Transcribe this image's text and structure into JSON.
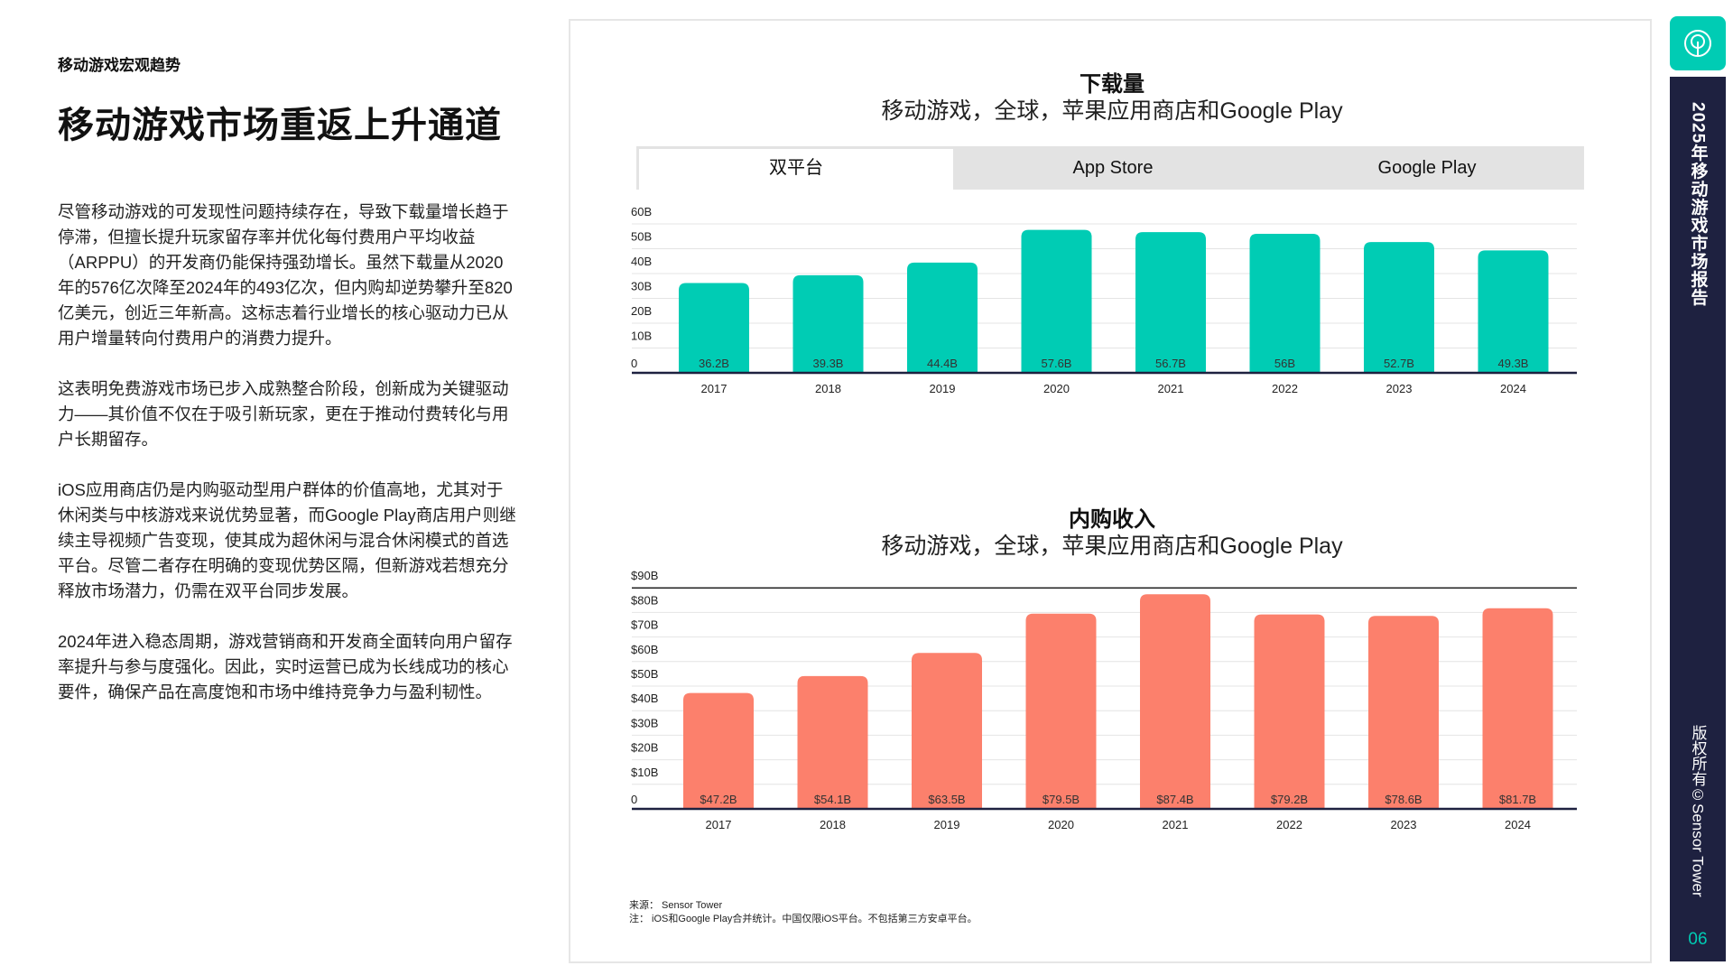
{
  "left": {
    "kicker": "移动游戏宏观趋势",
    "title": "移动游戏市场重返上升通道",
    "paragraphs": [
      "尽管移动游戏的可发现性问题持续存在，导致下载量增长趋于停滞，但擅长提升玩家留存率并优化每付费用户平均收益（ARPPU）的开发商仍能保持强劲增长。虽然下载量从2020年的576亿次降至2024年的493亿次，但内购却逆势攀升至820亿美元，创近三年新高。这标志着行业增长的核心驱动力已从用户增量转向付费用户的消费力提升。",
      "这表明免费游戏市场已步入成熟整合阶段，创新成为关键驱动力——其价值不仅在于吸引新玩家，更在于推动付费转化与用户长期留存。",
      "iOS应用商店仍是内购驱动型用户群体的价值高地，尤其对于休闲类与中核游戏来说优势显著，而Google Play商店用户则继续主导视频广告变现，使其成为超休闲与混合休闲模式的首选平台。尽管二者存在明确的变现优势区隔，但新游戏若想充分释放市场潜力，仍需在双平台同步发展。",
      "2024年进入稳态周期，游戏营销商和开发商全面转向用户留存率提升与参与度强化。因此，实时运营已成为长线成功的核心要件，确保产品在高度饱和市场中维持竞争力与盈利韧性。"
    ]
  },
  "tabs": [
    "双平台",
    "App Store",
    "Google Play"
  ],
  "active_tab": 0,
  "chart_data": [
    {
      "type": "bar",
      "title": "下载量",
      "subtitle": "移动游戏，全球，苹果应用商店和Google Play",
      "categories": [
        "2017",
        "2018",
        "2019",
        "2020",
        "2021",
        "2022",
        "2023",
        "2024"
      ],
      "values": [
        36.2,
        39.3,
        44.4,
        57.6,
        56.7,
        56,
        52.7,
        49.3
      ],
      "data_labels": [
        "36.2B",
        "39.3B",
        "44.4B",
        "57.6B",
        "56.7B",
        "56B",
        "52.7B",
        "49.3B"
      ],
      "yticks": [
        "0",
        "10B",
        "20B",
        "30B",
        "40B",
        "50B",
        "60B"
      ],
      "ylim": [
        0,
        60
      ],
      "grid": true,
      "color": "#00ccb4"
    },
    {
      "type": "bar",
      "title": "内购收入",
      "subtitle": "移动游戏，全球，苹果应用商店和Google Play",
      "categories": [
        "2017",
        "2018",
        "2019",
        "2020",
        "2021",
        "2022",
        "2023",
        "2024"
      ],
      "values": [
        47.2,
        54.1,
        63.5,
        79.5,
        87.4,
        79.2,
        78.6,
        81.7
      ],
      "data_labels": [
        "$47.2B",
        "$54.1B",
        "$63.5B",
        "$79.5B",
        "$87.4B",
        "$79.2B",
        "$78.6B",
        "$81.7B"
      ],
      "yticks": [
        "0",
        "$10B",
        "$20B",
        "$30B",
        "$40B",
        "$50B",
        "$60B",
        "$70B",
        "$80B",
        "$90B"
      ],
      "ylim": [
        0,
        90
      ],
      "grid": true,
      "color": "#fc806c"
    }
  ],
  "footnote": {
    "source": "来源： Sensor Tower",
    "note": "注： iOS和Google Play合并统计。中国仅限iOS平台。不包括第三方安卓平台。"
  },
  "sidebar": {
    "report_title": "2025年移动游戏市场报告",
    "copyright": "版权所有©Sensor Tower",
    "page": "06",
    "logo_icon": "sensor-tower-logo-icon"
  }
}
